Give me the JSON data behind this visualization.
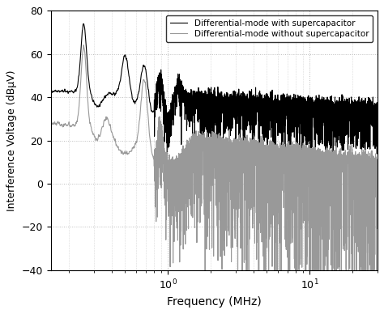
{
  "xlabel": "Frequency (MHz)",
  "ylabel": "Interference Voltage (dBμV)",
  "xlim": [
    0.15,
    30
  ],
  "ylim": [
    -40,
    80
  ],
  "yticks": [
    -40,
    -20,
    0,
    20,
    40,
    60,
    80
  ],
  "legend_black": "Differential-mode with supercapacitor",
  "legend_gray": "Differential-mode without supercapacitor",
  "color_black": "#000000",
  "color_gray": "#999999",
  "grid_color": "#bbbbbb",
  "lw_black": 0.8,
  "lw_gray": 0.8,
  "seed": 42,
  "n_points": 5000
}
